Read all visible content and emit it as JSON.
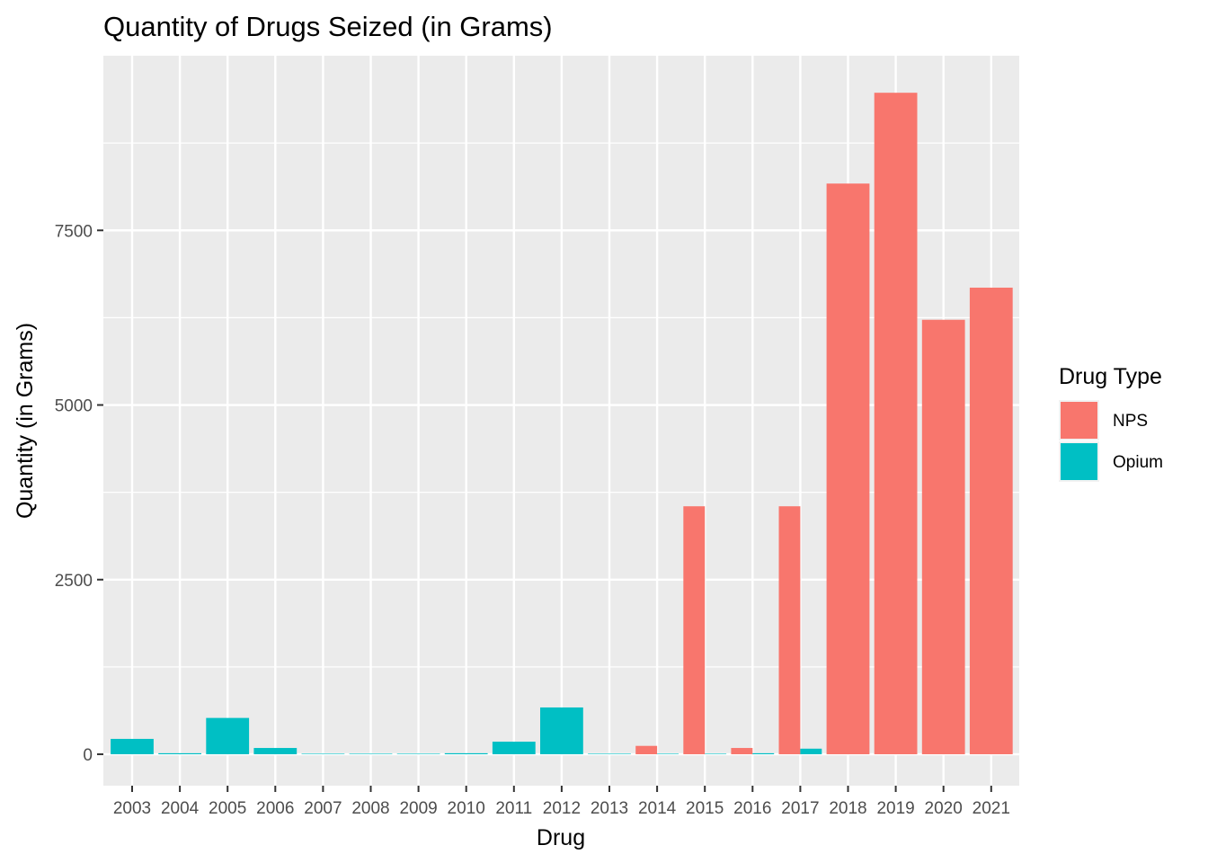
{
  "chart_data": {
    "type": "bar",
    "title": "Quantity of Drugs Seized (in Grams)",
    "xlabel": "Drug",
    "ylabel": "Quantity (in Grams)",
    "categories": [
      "2003",
      "2004",
      "2005",
      "2006",
      "2007",
      "2008",
      "2009",
      "2010",
      "2011",
      "2012",
      "2013",
      "2014",
      "2015",
      "2016",
      "2017",
      "2018",
      "2019",
      "2020",
      "2021"
    ],
    "series": [
      {
        "name": "NPS",
        "color": "#F8766D",
        "values": [
          null,
          null,
          null,
          null,
          null,
          null,
          null,
          null,
          null,
          null,
          null,
          120,
          3550,
          90,
          3550,
          8170,
          9470,
          6220,
          6680
        ]
      },
      {
        "name": "Opium",
        "color": "#00BFC4",
        "values": [
          220,
          15,
          520,
          90,
          5,
          0,
          0,
          15,
          180,
          670,
          0,
          5,
          0,
          15,
          80,
          null,
          null,
          null,
          null
        ]
      }
    ],
    "yticks": [
      0,
      2500,
      5000,
      7500
    ],
    "ylim": [
      -450,
      10000
    ],
    "legend": {
      "title": "Drug Type",
      "placement": "right"
    },
    "grid": true,
    "panel_background": "#EBEBEB"
  }
}
